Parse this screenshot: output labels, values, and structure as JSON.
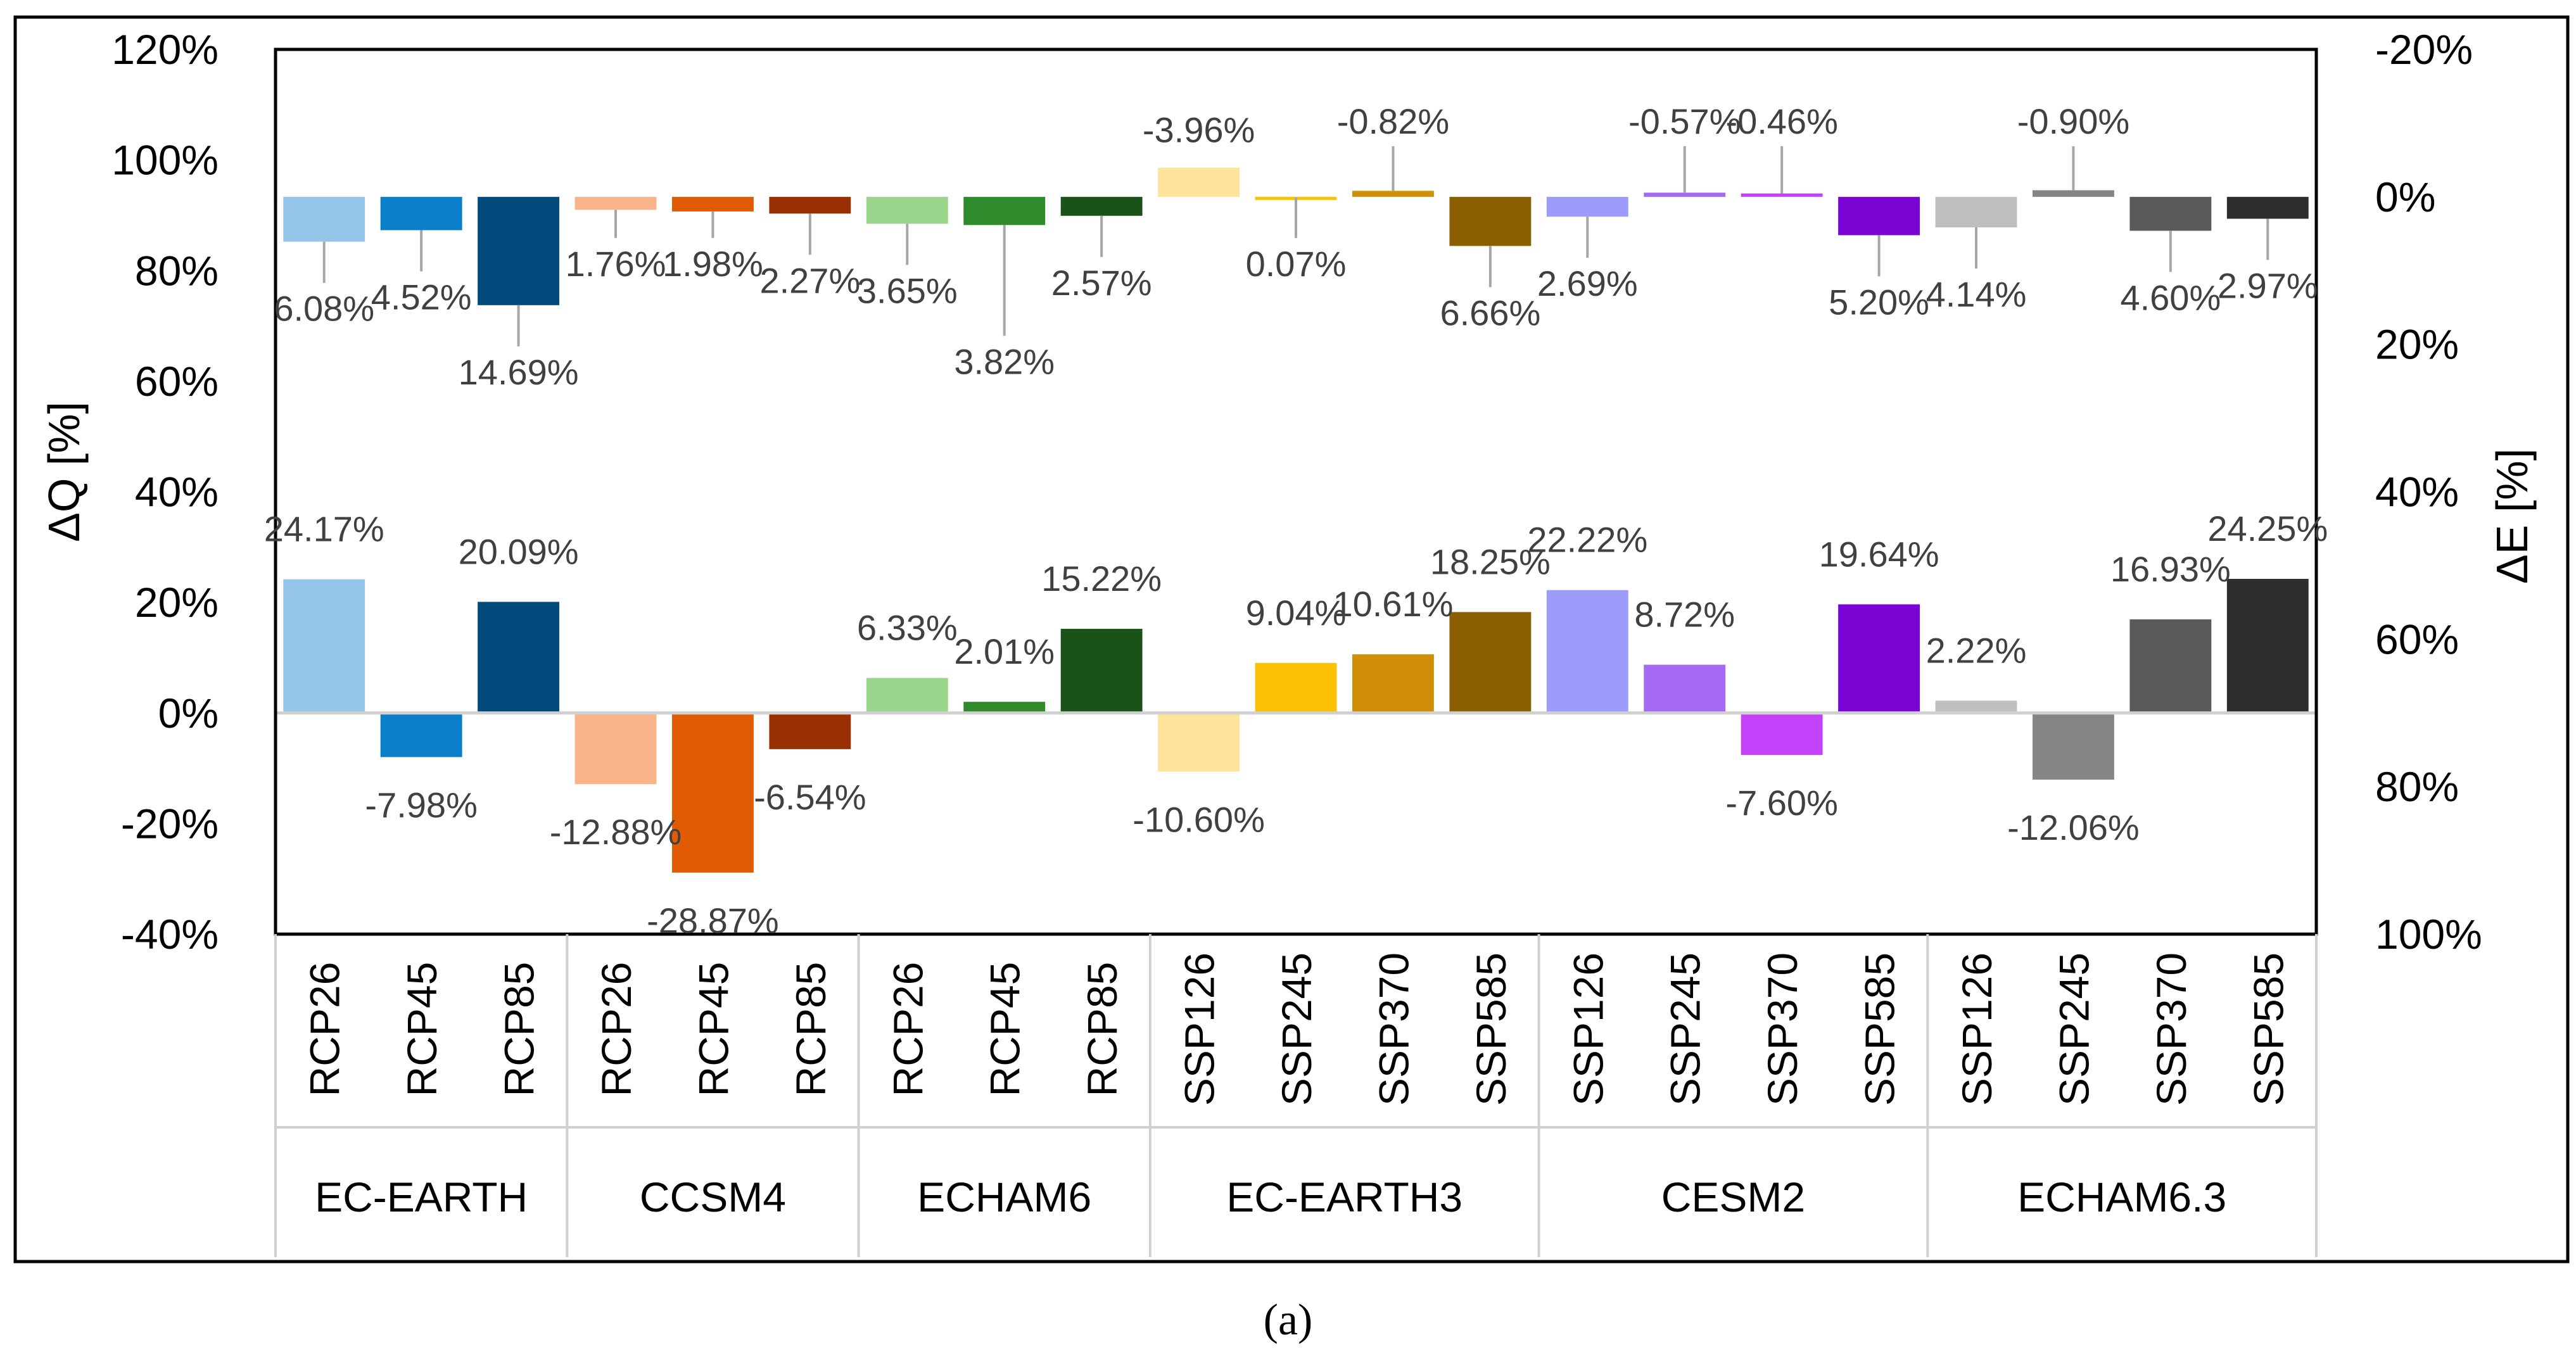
{
  "caption": "(a)",
  "chart_data": {
    "type": "bar",
    "title": "",
    "ylabel_left": "ΔQ [%]",
    "ylabel_right": "ΔE [%]",
    "left_axis": {
      "min": -40,
      "max": 120,
      "step": 20,
      "tick_labels": [
        "120%",
        "100%",
        "80%",
        "60%",
        "40%",
        "20%",
        "0%",
        "-20%",
        "-40%"
      ]
    },
    "right_axis": {
      "min": -20,
      "max": 100,
      "step": 20,
      "inverted": true,
      "tick_labels": [
        "-20%",
        "0%",
        "20%",
        "40%",
        "60%",
        "80%",
        "100%"
      ]
    },
    "groups": [
      {
        "name": "EC-EARTH",
        "scenarios": [
          "RCP26",
          "RCP45",
          "RCP85"
        ]
      },
      {
        "name": "CCSM4",
        "scenarios": [
          "RCP26",
          "RCP45",
          "RCP85"
        ]
      },
      {
        "name": "ECHAM6",
        "scenarios": [
          "RCP26",
          "RCP45",
          "RCP85"
        ]
      },
      {
        "name": "EC-EARTH3",
        "scenarios": [
          "SSP126",
          "SSP245",
          "SSP370",
          "SSP585"
        ]
      },
      {
        "name": "CESM2",
        "scenarios": [
          "SSP126",
          "SSP245",
          "SSP370",
          "SSP585"
        ]
      },
      {
        "name": "ECHAM6.3",
        "scenarios": [
          "SSP126",
          "SSP245",
          "SSP370",
          "SSP585"
        ]
      }
    ],
    "series": [
      {
        "name": "ΔQ",
        "axis": "left",
        "values": [
          24.17,
          -7.98,
          20.09,
          -12.88,
          -28.87,
          -6.54,
          6.33,
          2.01,
          15.22,
          -10.6,
          9.04,
          10.61,
          18.25,
          22.22,
          8.72,
          -7.6,
          19.64,
          2.22,
          -12.06,
          16.93,
          24.25
        ],
        "labels": [
          "24.17%",
          "-7.98%",
          "20.09%",
          "-12.88%",
          "-28.87%",
          "-6.54%",
          "6.33%",
          "2.01%",
          "15.22%",
          "-10.60%",
          "9.04%",
          "10.61%",
          "18.25%",
          "22.22%",
          "8.72%",
          "-7.60%",
          "19.64%",
          "2.22%",
          "-12.06%",
          "16.93%",
          "24.25%"
        ]
      },
      {
        "name": "ΔE",
        "axis": "right",
        "values": [
          6.08,
          4.52,
          14.69,
          1.76,
          1.98,
          2.27,
          3.65,
          3.82,
          2.57,
          -3.96,
          0.07,
          -0.82,
          6.66,
          2.69,
          -0.57,
          -0.46,
          5.2,
          4.14,
          -0.9,
          4.6,
          2.97
        ],
        "labels": [
          "6.08%",
          "4.52%",
          "14.69%",
          "1.76%",
          "1.98%",
          "2.27%",
          "3.65%",
          "3.82%",
          "2.57%",
          "-3.96%",
          "0.07%",
          "-0.82%",
          "6.66%",
          "2.69%",
          "-0.57%",
          "-0.46%",
          "5.20%",
          "4.14%",
          "-0.90%",
          "4.60%",
          "2.97%"
        ]
      }
    ],
    "colors": [
      "#92c5e8",
      "#0a7ec9",
      "#004a7c",
      "#f9b48a",
      "#e15a04",
      "#983003",
      "#9ad58c",
      "#2e8a2a",
      "#1a5218",
      "#fde49a",
      "#fcc103",
      "#d08f06",
      "#8a5f02",
      "#9c9cfb",
      "#a669f3",
      "#c142f9",
      "#7a05d4",
      "#bfbfbf",
      "#858585",
      "#5a5a5a",
      "#2d2d2d"
    ]
  }
}
